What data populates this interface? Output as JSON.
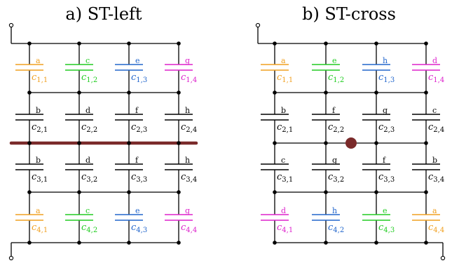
{
  "colors": {
    "wire": "#000000",
    "cut": "#7a2a2a",
    "a": "#f0a020",
    "b": "#000000",
    "c": "#22cc22",
    "d": "#dd22cc",
    "e": "#22cc44",
    "f": "#000000",
    "g": "#dd22cc",
    "h": "#2266cc"
  },
  "panels": [
    {
      "id": "left",
      "title": "a)  ST-left",
      "cut": "line",
      "rows": [
        [
          {
            "label": "a",
            "cap": "c",
            "idx": "1,1",
            "color": "#f0a020"
          },
          {
            "label": "c",
            "cap": "c",
            "idx": "1,2",
            "color": "#22cc22"
          },
          {
            "label": "e",
            "cap": "c",
            "idx": "1,3",
            "color": "#2266cc"
          },
          {
            "label": "g",
            "cap": "c",
            "idx": "1,4",
            "color": "#dd22cc"
          }
        ],
        [
          {
            "label": "b",
            "cap": "c",
            "idx": "2,1",
            "color": "#000000"
          },
          {
            "label": "d",
            "cap": "c",
            "idx": "2,2",
            "color": "#000000"
          },
          {
            "label": "f",
            "cap": "c",
            "idx": "2,3",
            "color": "#000000"
          },
          {
            "label": "h",
            "cap": "c",
            "idx": "2,4",
            "color": "#000000"
          }
        ],
        [
          {
            "label": "b",
            "cap": "c",
            "idx": "3,1",
            "color": "#000000"
          },
          {
            "label": "d",
            "cap": "c",
            "idx": "3,2",
            "color": "#000000"
          },
          {
            "label": "f",
            "cap": "c",
            "idx": "3,3",
            "color": "#000000"
          },
          {
            "label": "h",
            "cap": "c",
            "idx": "3,4",
            "color": "#000000"
          }
        ],
        [
          {
            "label": "a",
            "cap": "c",
            "idx": "4,1",
            "color": "#f0a020"
          },
          {
            "label": "c",
            "cap": "c",
            "idx": "4,2",
            "color": "#22cc22"
          },
          {
            "label": "e",
            "cap": "c",
            "idx": "4,3",
            "color": "#2266cc"
          },
          {
            "label": "g",
            "cap": "c",
            "idx": "4,4",
            "color": "#dd22cc"
          }
        ]
      ]
    },
    {
      "id": "cross",
      "title": "b)  ST-cross",
      "cut": "dot",
      "rows": [
        [
          {
            "label": "a",
            "cap": "c",
            "idx": "1,1",
            "color": "#f0a020"
          },
          {
            "label": "e",
            "cap": "c",
            "idx": "1,2",
            "color": "#22cc22"
          },
          {
            "label": "h",
            "cap": "c",
            "idx": "1,3",
            "color": "#2266cc"
          },
          {
            "label": "d",
            "cap": "c",
            "idx": "1,4",
            "color": "#dd22cc"
          }
        ],
        [
          {
            "label": "b",
            "cap": "c",
            "idx": "2,1",
            "color": "#000000"
          },
          {
            "label": "f",
            "cap": "c",
            "idx": "2,2",
            "color": "#000000"
          },
          {
            "label": "g",
            "cap": "c",
            "idx": "2,3",
            "color": "#000000"
          },
          {
            "label": "c",
            "cap": "c",
            "idx": "2,4",
            "color": "#000000"
          }
        ],
        [
          {
            "label": "c",
            "cap": "c",
            "idx": "3,1",
            "color": "#000000"
          },
          {
            "label": "g",
            "cap": "c",
            "idx": "3,2",
            "color": "#000000"
          },
          {
            "label": "f",
            "cap": "c",
            "idx": "3,3",
            "color": "#000000"
          },
          {
            "label": "b",
            "cap": "c",
            "idx": "3,4",
            "color": "#000000"
          }
        ],
        [
          {
            "label": "d",
            "cap": "c",
            "idx": "4,1",
            "color": "#dd22cc"
          },
          {
            "label": "h",
            "cap": "c",
            "idx": "4,2",
            "color": "#2266cc"
          },
          {
            "label": "e",
            "cap": "c",
            "idx": "4,3",
            "color": "#22cc22"
          },
          {
            "label": "a",
            "cap": "c",
            "idx": "4,4",
            "color": "#f0a020"
          }
        ]
      ]
    }
  ]
}
